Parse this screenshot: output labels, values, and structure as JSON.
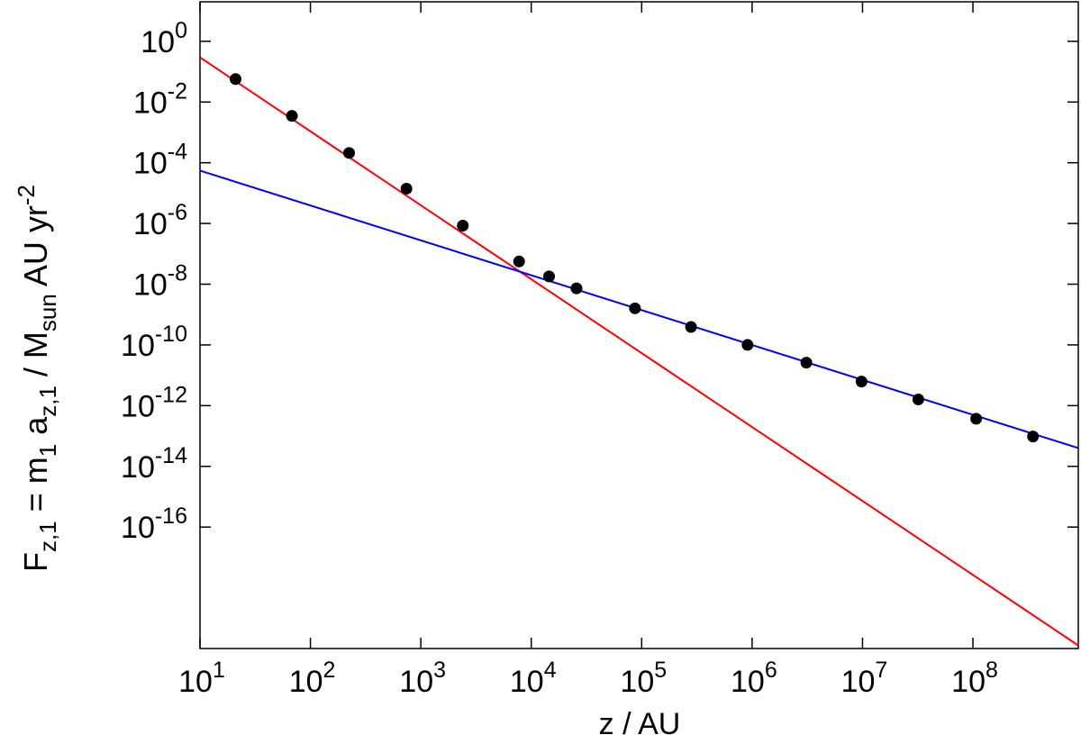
{
  "chart_data": {
    "type": "scatter",
    "xlabel": "z / AU",
    "ylabel": [
      "F",
      "z,1",
      " = m",
      "1",
      " a",
      "z,1",
      " / M",
      "sun",
      " AU yr",
      "-2"
    ],
    "xscale": "log",
    "yscale": "log",
    "xlim": [
      10,
      900000000
    ],
    "ylim": [
      1e-20,
      20
    ],
    "xticks": [
      {
        "value": 10,
        "label": [
          "10",
          "1"
        ]
      },
      {
        "value": 100,
        "label": [
          "10",
          "2"
        ]
      },
      {
        "value": 1000,
        "label": [
          "10",
          "3"
        ]
      },
      {
        "value": 10000,
        "label": [
          "10",
          "4"
        ]
      },
      {
        "value": 100000,
        "label": [
          "10",
          "5"
        ]
      },
      {
        "value": 1000000,
        "label": [
          "10",
          "6"
        ]
      },
      {
        "value": 10000000,
        "label": [
          "10",
          "7"
        ]
      },
      {
        "value": 100000000,
        "label": [
          "10",
          "8"
        ]
      }
    ],
    "yticks": [
      {
        "value": 1,
        "label": [
          "10",
          "0"
        ]
      },
      {
        "value": 0.01,
        "label": [
          "10",
          "-2"
        ]
      },
      {
        "value": 0.0001,
        "label": [
          "10",
          "-4"
        ]
      },
      {
        "value": 1e-06,
        "label": [
          "10",
          "-6"
        ]
      },
      {
        "value": 1e-08,
        "label": [
          "10",
          "-8"
        ]
      },
      {
        "value": 1e-10,
        "label": [
          "10",
          "-10"
        ]
      },
      {
        "value": 1e-12,
        "label": [
          "10",
          "-12"
        ]
      },
      {
        "value": 1e-14,
        "label": [
          "10",
          "-14"
        ]
      },
      {
        "value": 1e-16,
        "label": [
          "10",
          "-16"
        ]
      }
    ],
    "series": [
      {
        "kind": "line",
        "color": "#ff0000",
        "x": [
          10,
          900000000
        ],
        "values": [
          0.295,
          1.26e-20
        ]
      },
      {
        "kind": "line",
        "color": "#0000ff",
        "x": [
          10,
          900000000
        ],
        "values": [
          5.5e-05,
          4e-14
        ]
      },
      {
        "kind": "points",
        "color": "#000000",
        "x": [
          21,
          68,
          224,
          741,
          2400,
          7760,
          14500,
          25700,
          87000,
          280000,
          910000,
          3100000,
          9800000,
          32000000,
          107000000,
          350000000
        ],
        "values": [
          0.057,
          0.0035,
          0.00021,
          1.4e-05,
          8.5e-07,
          5.6e-08,
          1.8e-08,
          7.3e-09,
          1.6e-09,
          3.9e-10,
          1e-10,
          2.6e-11,
          6.2e-12,
          1.6e-12,
          3.7e-13,
          9.6e-14
        ]
      }
    ]
  }
}
